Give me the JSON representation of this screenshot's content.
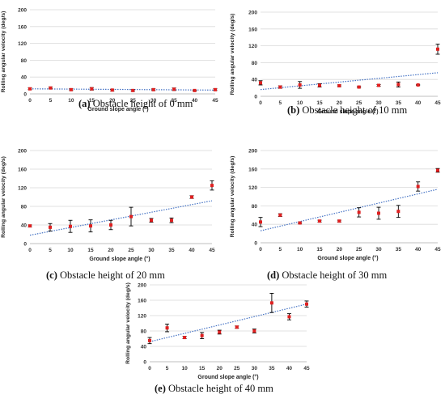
{
  "figure": {
    "captions": [
      {
        "label": "(a)",
        "text": " Obstacle height of 0 mm"
      },
      {
        "label": "(b)",
        "text": " Obstacle height of 10 mm"
      },
      {
        "label": "(c)",
        "text": " Obstacle height of 20 mm"
      },
      {
        "label": "(d)",
        "text": " Obstacle height of 30 mm"
      },
      {
        "label": "(e)",
        "text": " Obstacle height of 40 mm"
      }
    ]
  },
  "colors": {
    "marker": "#e02020",
    "errorbar": "#000000",
    "trend": "#4472c4",
    "grid": "#d9d9d9"
  },
  "chart_data": [
    {
      "type": "scatter",
      "xlabel": "Ground slope angle (°)",
      "ylabel": "Rolling angular velocity (deg/s)",
      "xlim": [
        0,
        45
      ],
      "ylim": [
        0,
        200
      ],
      "xticks": [
        0,
        5,
        10,
        15,
        20,
        25,
        30,
        35,
        40,
        45
      ],
      "yticks": [
        0,
        40,
        80,
        120,
        160,
        200
      ],
      "grid": "horizontal",
      "series": [
        {
          "x": [
            0,
            5,
            10,
            15,
            20,
            25,
            30,
            35,
            40,
            45
          ],
          "y": [
            12,
            14,
            10,
            12,
            9,
            8,
            10,
            11,
            8,
            10
          ],
          "err": [
            2,
            2,
            2,
            3,
            2,
            2,
            2,
            3,
            1,
            2
          ]
        }
      ],
      "trendline": [
        [
          0,
          12
        ],
        [
          45,
          9
        ]
      ]
    },
    {
      "type": "scatter",
      "xlabel": "Ground slope angle (°)",
      "ylabel": "Rolling angular velocity (deg/s)",
      "xlim": [
        0,
        45
      ],
      "ylim": [
        0,
        200
      ],
      "xticks": [
        0,
        5,
        10,
        15,
        20,
        25,
        30,
        35,
        40,
        45
      ],
      "yticks": [
        0,
        40,
        80,
        120,
        160,
        200
      ],
      "grid": "horizontal",
      "series": [
        {
          "x": [
            0,
            5,
            10,
            15,
            20,
            25,
            30,
            35,
            40,
            45
          ],
          "y": [
            32,
            22,
            27,
            26,
            25,
            22,
            26,
            28,
            27,
            112
          ],
          "err": [
            5,
            3,
            8,
            4,
            2,
            2,
            2,
            6,
            1,
            12
          ]
        }
      ],
      "trendline": [
        [
          0,
          16
        ],
        [
          45,
          56
        ]
      ]
    },
    {
      "type": "scatter",
      "xlabel": "Ground slope angle (°)",
      "ylabel": "Rolling angular velocity (deg/s)",
      "xlim": [
        0,
        45
      ],
      "ylim": [
        0,
        200
      ],
      "xticks": [
        0,
        5,
        10,
        15,
        20,
        25,
        30,
        35,
        40,
        45
      ],
      "yticks": [
        0,
        40,
        80,
        120,
        160,
        200
      ],
      "grid": "horizontal",
      "series": [
        {
          "x": [
            0,
            5,
            10,
            15,
            20,
            25,
            30,
            35,
            40,
            45
          ],
          "y": [
            38,
            35,
            37,
            38,
            40,
            58,
            50,
            50,
            100,
            125
          ],
          "err": [
            2,
            8,
            13,
            13,
            10,
            20,
            4,
            5,
            3,
            10
          ]
        }
      ],
      "trendline": [
        [
          0,
          18
        ],
        [
          45,
          92
        ]
      ]
    },
    {
      "type": "scatter",
      "xlabel": "Ground slope angle (°)",
      "ylabel": "Rolling angular velocity (deg/s)",
      "xlim": [
        0,
        45
      ],
      "ylim": [
        0,
        200
      ],
      "xticks": [
        0,
        5,
        10,
        15,
        20,
        25,
        30,
        35,
        40,
        45
      ],
      "yticks": [
        0,
        40,
        80,
        120,
        160,
        200
      ],
      "grid": "horizontal",
      "series": [
        {
          "x": [
            0,
            5,
            10,
            15,
            20,
            25,
            30,
            35,
            40,
            45
          ],
          "y": [
            45,
            60,
            43,
            47,
            47,
            66,
            64,
            68,
            122,
            157
          ],
          "err": [
            10,
            3,
            2,
            2,
            2,
            10,
            13,
            13,
            10,
            4
          ]
        }
      ],
      "trendline": [
        [
          0,
          26
        ],
        [
          45,
          116
        ]
      ]
    },
    {
      "type": "scatter",
      "xlabel": "Ground slope angle (°)",
      "ylabel": "Rolling angular velocity (deg/s)",
      "xlim": [
        0,
        45
      ],
      "ylim": [
        0,
        200
      ],
      "xticks": [
        0,
        5,
        10,
        15,
        20,
        25,
        30,
        35,
        40,
        45
      ],
      "yticks": [
        0,
        40,
        80,
        120,
        160,
        200
      ],
      "grid": "horizontal",
      "series": [
        {
          "x": [
            0,
            5,
            10,
            15,
            20,
            25,
            30,
            35,
            40,
            45
          ],
          "y": [
            55,
            88,
            63,
            68,
            77,
            90,
            80,
            153,
            117,
            150
          ],
          "err": [
            8,
            10,
            3,
            8,
            5,
            3,
            5,
            25,
            8,
            8
          ]
        }
      ],
      "trendline": [
        [
          0,
          52
        ],
        [
          45,
          150
        ]
      ]
    }
  ]
}
